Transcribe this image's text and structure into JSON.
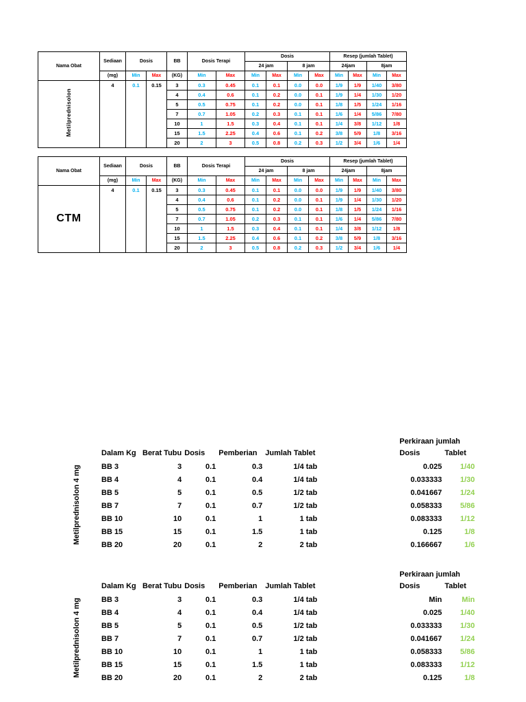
{
  "colors": {
    "min_blue": "#00b0f0",
    "max_red": "#ff0000",
    "tablet_green": "#92d050"
  },
  "top_header": {
    "nama_obat": "Nama Obat",
    "sediaan": "Sediaan",
    "mg": "(mg)",
    "dosis": "Dosis",
    "min": "Min",
    "max": "Max",
    "bb": "BB",
    "kg": "(KG)",
    "dosis_terapi": "Dosis Terapi",
    "jam24": "24 jam",
    "jam8": "8 jam",
    "resep": "Resep (jumlah Tablet)",
    "resep_jam24": "24jam",
    "resep_jam8": "8jam"
  },
  "top_tables": [
    {
      "drug": "Metilprednisolon",
      "orientation": "vertical",
      "sediaan": "4",
      "dosis_min": "0.1",
      "dosis_max": "0.15",
      "rows": [
        [
          "3",
          "0.3",
          "0.45",
          "0.1",
          "0.1",
          "0.0",
          "0.0",
          "1/9",
          "1/9",
          "1/40",
          "3/80"
        ],
        [
          "4",
          "0.4",
          "0.6",
          "0.1",
          "0.2",
          "0.0",
          "0.1",
          "1/9",
          "1/4",
          "1/30",
          "1/20"
        ],
        [
          "5",
          "0.5",
          "0.75",
          "0.1",
          "0.2",
          "0.0",
          "0.1",
          "1/8",
          "1/5",
          "1/24",
          "1/16"
        ],
        [
          "7",
          "0.7",
          "1.05",
          "0.2",
          "0.3",
          "0.1",
          "0.1",
          "1/6",
          "1/4",
          "5/86",
          "7/80"
        ],
        [
          "10",
          "1",
          "1.5",
          "0.3",
          "0.4",
          "0.1",
          "0.1",
          "1/4",
          "3/8",
          "1/12",
          "1/8"
        ],
        [
          "15",
          "1.5",
          "2.25",
          "0.4",
          "0.6",
          "0.1",
          "0.2",
          "3/8",
          "5/9",
          "1/8",
          "3/16"
        ],
        [
          "20",
          "2",
          "3",
          "0.5",
          "0.8",
          "0.2",
          "0.3",
          "1/2",
          "3/4",
          "1/6",
          "1/4"
        ]
      ]
    },
    {
      "drug": "CTM",
      "orientation": "horizontal",
      "sediaan": "4",
      "dosis_min": "0.1",
      "dosis_max": "0.15",
      "rows": [
        [
          "3",
          "0.3",
          "0.45",
          "0.1",
          "0.1",
          "0.0",
          "0.0",
          "1/9",
          "1/9",
          "1/40",
          "3/80"
        ],
        [
          "4",
          "0.4",
          "0.6",
          "0.1",
          "0.2",
          "0.0",
          "0.1",
          "1/9",
          "1/4",
          "1/30",
          "1/20"
        ],
        [
          "5",
          "0.5",
          "0.75",
          "0.1",
          "0.2",
          "0.0",
          "0.1",
          "1/8",
          "1/5",
          "1/24",
          "1/16"
        ],
        [
          "7",
          "0.7",
          "1.05",
          "0.2",
          "0.3",
          "0.1",
          "0.1",
          "1/6",
          "1/4",
          "5/86",
          "7/80"
        ],
        [
          "10",
          "1",
          "1.5",
          "0.3",
          "0.4",
          "0.1",
          "0.1",
          "1/4",
          "3/8",
          "1/12",
          "1/8"
        ],
        [
          "15",
          "1.5",
          "2.25",
          "0.4",
          "0.6",
          "0.1",
          "0.2",
          "3/8",
          "5/9",
          "1/8",
          "3/16"
        ],
        [
          "20",
          "2",
          "3",
          "0.5",
          "0.8",
          "0.2",
          "0.3",
          "1/2",
          "3/4",
          "1/6",
          "1/4"
        ]
      ]
    }
  ],
  "lower_header": {
    "perkiraan": "Perkiraan jumlah",
    "cols": [
      "Dalam Kg",
      "Berat Tubu",
      "Dosis",
      "Pemberian",
      "Jumlah Tablet",
      "Dosis",
      "Tablet"
    ]
  },
  "lower_blocks": [
    {
      "side_label": "Metilprednisolon 4 mg",
      "rows": [
        [
          "BB 3",
          "3",
          "0.1",
          "0.3",
          "1/4 tab",
          "0.025",
          "1/40"
        ],
        [
          "BB 4",
          "4",
          "0.1",
          "0.4",
          "1/4 tab",
          "0.033333",
          "1/30"
        ],
        [
          "BB 5",
          "5",
          "0.1",
          "0.5",
          "1/2 tab",
          "0.041667",
          "1/24"
        ],
        [
          "BB 7",
          "7",
          "0.1",
          "0.7",
          "1/2 tab",
          "0.058333",
          "5/86"
        ],
        [
          "BB 10",
          "10",
          "0.1",
          "1",
          "1 tab",
          "0.083333",
          "1/12"
        ],
        [
          "BB 15",
          "15",
          "0.1",
          "1.5",
          "1 tab",
          "0.125",
          "1/8"
        ],
        [
          "BB 20",
          "20",
          "0.1",
          "2",
          "2 tab",
          "0.166667",
          "1/6"
        ]
      ]
    },
    {
      "side_label": "Metilprednisolon 4 mg",
      "rows": [
        [
          "BB 3",
          "3",
          "0.1",
          "0.3",
          "1/4 tab",
          "Min",
          "Min"
        ],
        [
          "BB 4",
          "4",
          "0.1",
          "0.4",
          "1/4 tab",
          "0.025",
          "1/40"
        ],
        [
          "BB 5",
          "5",
          "0.1",
          "0.5",
          "1/2 tab",
          "0.033333",
          "1/30"
        ],
        [
          "BB 7",
          "7",
          "0.1",
          "0.7",
          "1/2 tab",
          "0.041667",
          "1/24"
        ],
        [
          "BB 10",
          "10",
          "0.1",
          "1",
          "1 tab",
          "0.058333",
          "5/86"
        ],
        [
          "BB 15",
          "15",
          "0.1",
          "1.5",
          "1 tab",
          "0.083333",
          "1/12"
        ],
        [
          "BB 20",
          "20",
          "0.1",
          "2",
          "2 tab",
          "0.125",
          "1/8"
        ]
      ]
    }
  ]
}
